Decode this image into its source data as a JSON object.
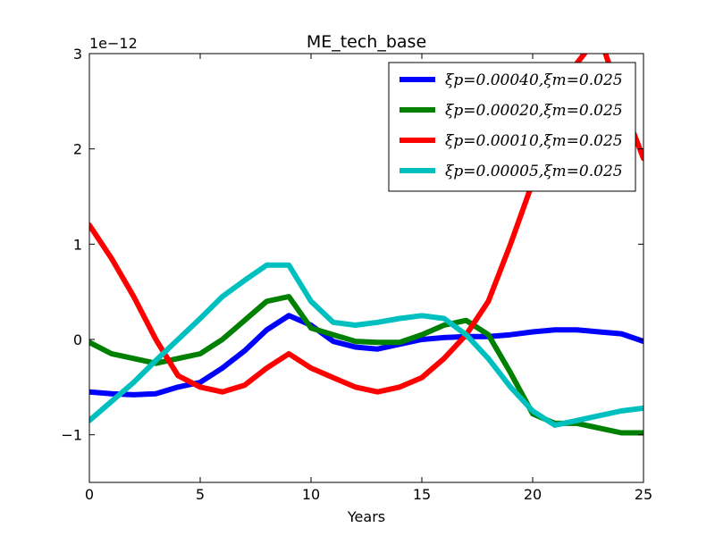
{
  "chart_data": {
    "type": "line",
    "title": "ME_tech_base",
    "xlabel": "Years",
    "ylabel": "",
    "y_offset_label": "1e−12",
    "xlim": [
      0,
      25
    ],
    "ylim": [
      -1.5,
      3
    ],
    "x_ticks": [
      0,
      5,
      10,
      15,
      20,
      25
    ],
    "x_tick_labels": [
      "0",
      "5",
      "10",
      "15",
      "20",
      "25"
    ],
    "y_ticks": [
      -1,
      0,
      1,
      2,
      3
    ],
    "y_tick_labels": [
      "−1",
      "0",
      "1",
      "2",
      "3"
    ],
    "grid": false,
    "legend_position": "top-right",
    "series": [
      {
        "name": "ξp=0.00040,ξm=0.025",
        "color": "#0000ff",
        "x": [
          0,
          1,
          2,
          3,
          4,
          5,
          6,
          7,
          8,
          9,
          10,
          11,
          12,
          13,
          14,
          15,
          16,
          17,
          18,
          19,
          20,
          21,
          22,
          23,
          24,
          25
        ],
        "y": [
          -0.55,
          -0.57,
          -0.58,
          -0.57,
          -0.5,
          -0.45,
          -0.3,
          -0.12,
          0.1,
          0.25,
          0.15,
          -0.02,
          -0.08,
          -0.1,
          -0.05,
          0,
          0.02,
          0.03,
          0.03,
          0.05,
          0.08,
          0.1,
          0.1,
          0.08,
          0.06,
          -0.02
        ]
      },
      {
        "name": "ξp=0.00020,ξm=0.025",
        "color": "#008000",
        "x": [
          0,
          1,
          2,
          3,
          4,
          5,
          6,
          7,
          8,
          9,
          10,
          11,
          12,
          13,
          14,
          15,
          16,
          17,
          18,
          19,
          20,
          21,
          22,
          23,
          24,
          25
        ],
        "y": [
          -0.03,
          -0.15,
          -0.2,
          -0.25,
          -0.2,
          -0.15,
          0,
          0.2,
          0.4,
          0.45,
          0.12,
          0.05,
          -0.02,
          -0.03,
          -0.03,
          0.05,
          0.15,
          0.2,
          0.05,
          -0.35,
          -0.78,
          -0.88,
          -0.88,
          -0.93,
          -0.98,
          -0.98
        ]
      },
      {
        "name": "ξp=0.00010,ξm=0.025",
        "color": "#ff0000",
        "x": [
          0,
          1,
          2,
          3,
          4,
          5,
          6,
          7,
          8,
          9,
          10,
          11,
          12,
          13,
          14,
          15,
          16,
          17,
          18,
          19,
          20,
          21,
          22,
          23,
          24,
          25
        ],
        "y": [
          1.2,
          0.85,
          0.45,
          0,
          -0.38,
          -0.5,
          -0.55,
          -0.48,
          -0.3,
          -0.15,
          -0.3,
          -0.4,
          -0.5,
          -0.55,
          -0.5,
          -0.4,
          -0.2,
          0.05,
          0.4,
          1,
          1.65,
          2.3,
          2.9,
          3.2,
          2.5,
          1.9
        ]
      },
      {
        "name": "ξp=0.00005,ξm=0.025",
        "color": "#00bfbf",
        "x": [
          0,
          1,
          2,
          3,
          4,
          5,
          6,
          7,
          8,
          9,
          10,
          11,
          12,
          13,
          14,
          15,
          16,
          17,
          18,
          19,
          20,
          21,
          22,
          23,
          24,
          25
        ],
        "y": [
          -0.85,
          -0.65,
          -0.45,
          -0.22,
          0,
          0.22,
          0.45,
          0.62,
          0.78,
          0.78,
          0.4,
          0.18,
          0.15,
          0.18,
          0.22,
          0.25,
          0.22,
          0.05,
          -0.2,
          -0.5,
          -0.75,
          -0.9,
          -0.85,
          -0.8,
          -0.75,
          -0.72
        ]
      }
    ]
  }
}
